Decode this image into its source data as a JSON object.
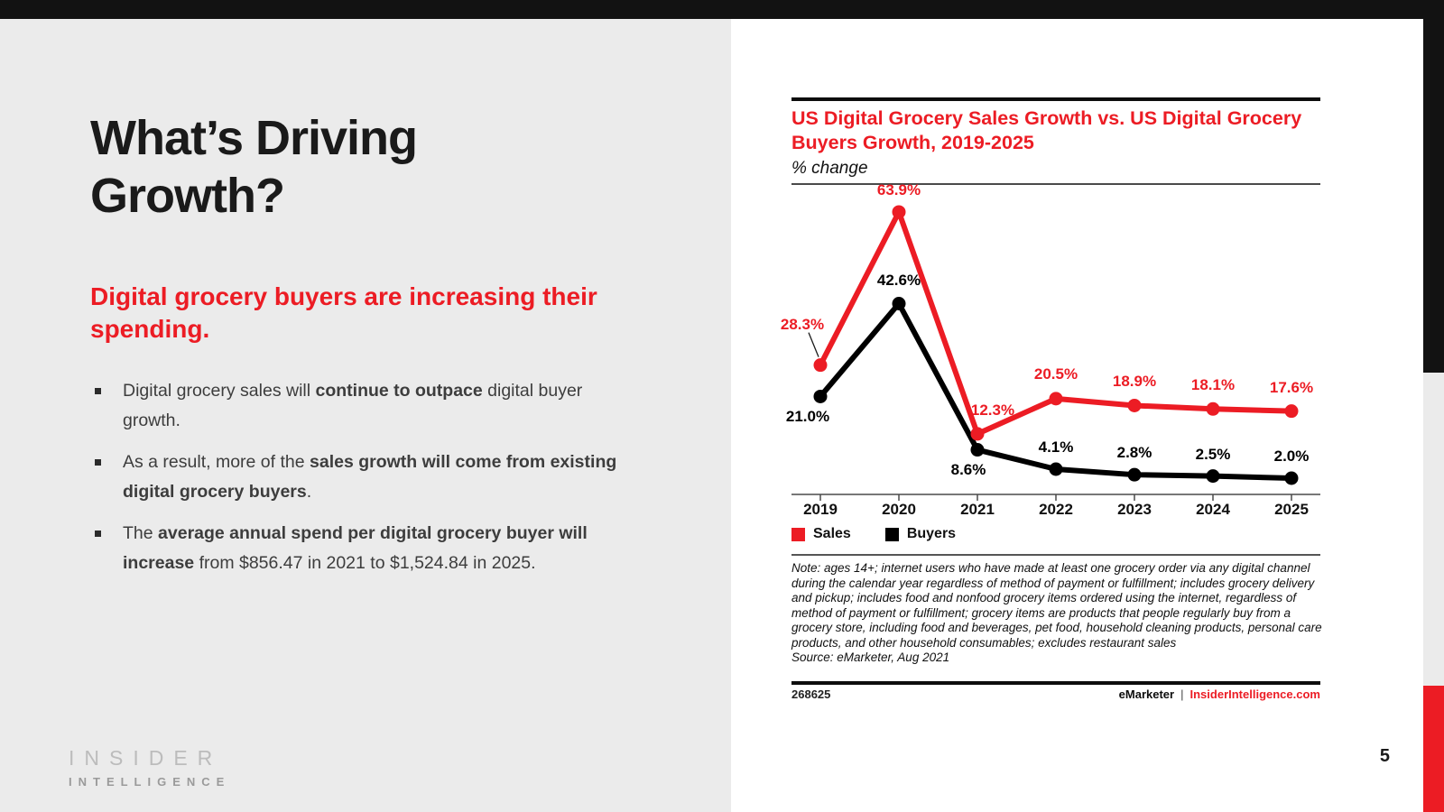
{
  "page": {
    "number": "5"
  },
  "colors": {
    "accent_red": "#ec1c24",
    "panel_gray": "#ebebeb",
    "bar_black": "#121212"
  },
  "left_panel": {
    "title": "What’s Driving Growth?",
    "subtitle": "Digital grocery buyers are increasing their spending.",
    "bullets": [
      {
        "segments": [
          {
            "t": "Digital grocery sales will ",
            "b": false
          },
          {
            "t": "continue to outpace",
            "b": true
          },
          {
            "t": " digital buyer growth.",
            "b": false
          }
        ]
      },
      {
        "segments": [
          {
            "t": "As a result, more of the ",
            "b": false
          },
          {
            "t": "sales growth will come from existing digital grocery buyers",
            "b": true
          },
          {
            "t": ".",
            "b": false
          }
        ]
      },
      {
        "segments": [
          {
            "t": "The ",
            "b": false
          },
          {
            "t": "average annual spend per digital grocery buyer will increase",
            "b": true
          },
          {
            "t": " from $856.47 in 2021 to $1,524.84 in 2025.",
            "b": false
          }
        ]
      }
    ],
    "logo": {
      "line1": "INSIDER",
      "line2": "INTELLIGENCE"
    }
  },
  "chart_data": {
    "type": "line",
    "title": "US Digital Grocery Sales Growth vs. US Digital Grocery Buyers Growth, 2019-2025",
    "subtitle": "% change",
    "categories": [
      "2019",
      "2020",
      "2021",
      "2022",
      "2023",
      "2024",
      "2025"
    ],
    "series": [
      {
        "name": "Sales",
        "color": "#ec1c24",
        "values": [
          28.3,
          63.9,
          12.3,
          20.5,
          18.9,
          18.1,
          17.6
        ],
        "labels": [
          "28.3%",
          "63.9%",
          "12.3%",
          "20.5%",
          "18.9%",
          "18.1%",
          "17.6%"
        ]
      },
      {
        "name": "Buyers",
        "color": "#000000",
        "values": [
          21.0,
          42.6,
          8.6,
          4.1,
          2.8,
          2.5,
          2.0
        ],
        "labels": [
          "21.0%",
          "42.6%",
          "8.6%",
          "4.1%",
          "2.8%",
          "2.5%",
          "2.0%"
        ]
      }
    ],
    "ylim": [
      -2,
      66
    ],
    "grid": false,
    "legend_position": "bottom"
  },
  "chart_footer": {
    "note": "Note: ages 14+; internet users who have made at least one grocery order via any digital channel during the calendar year regardless of method of payment or fulfillment; includes grocery delivery and pickup; includes food and nonfood grocery items ordered using the internet, regardless of method of payment or fulfillment; grocery items are products that people regularly buy from a grocery store, including food and beverages, pet food, household cleaning products, personal care products, and other household consumables; excludes restaurant sales",
    "source": "Source: eMarketer, Aug 2021",
    "id": "268625",
    "brand": "eMarketer",
    "separator": "|",
    "site": "InsiderIntelligence.com"
  }
}
